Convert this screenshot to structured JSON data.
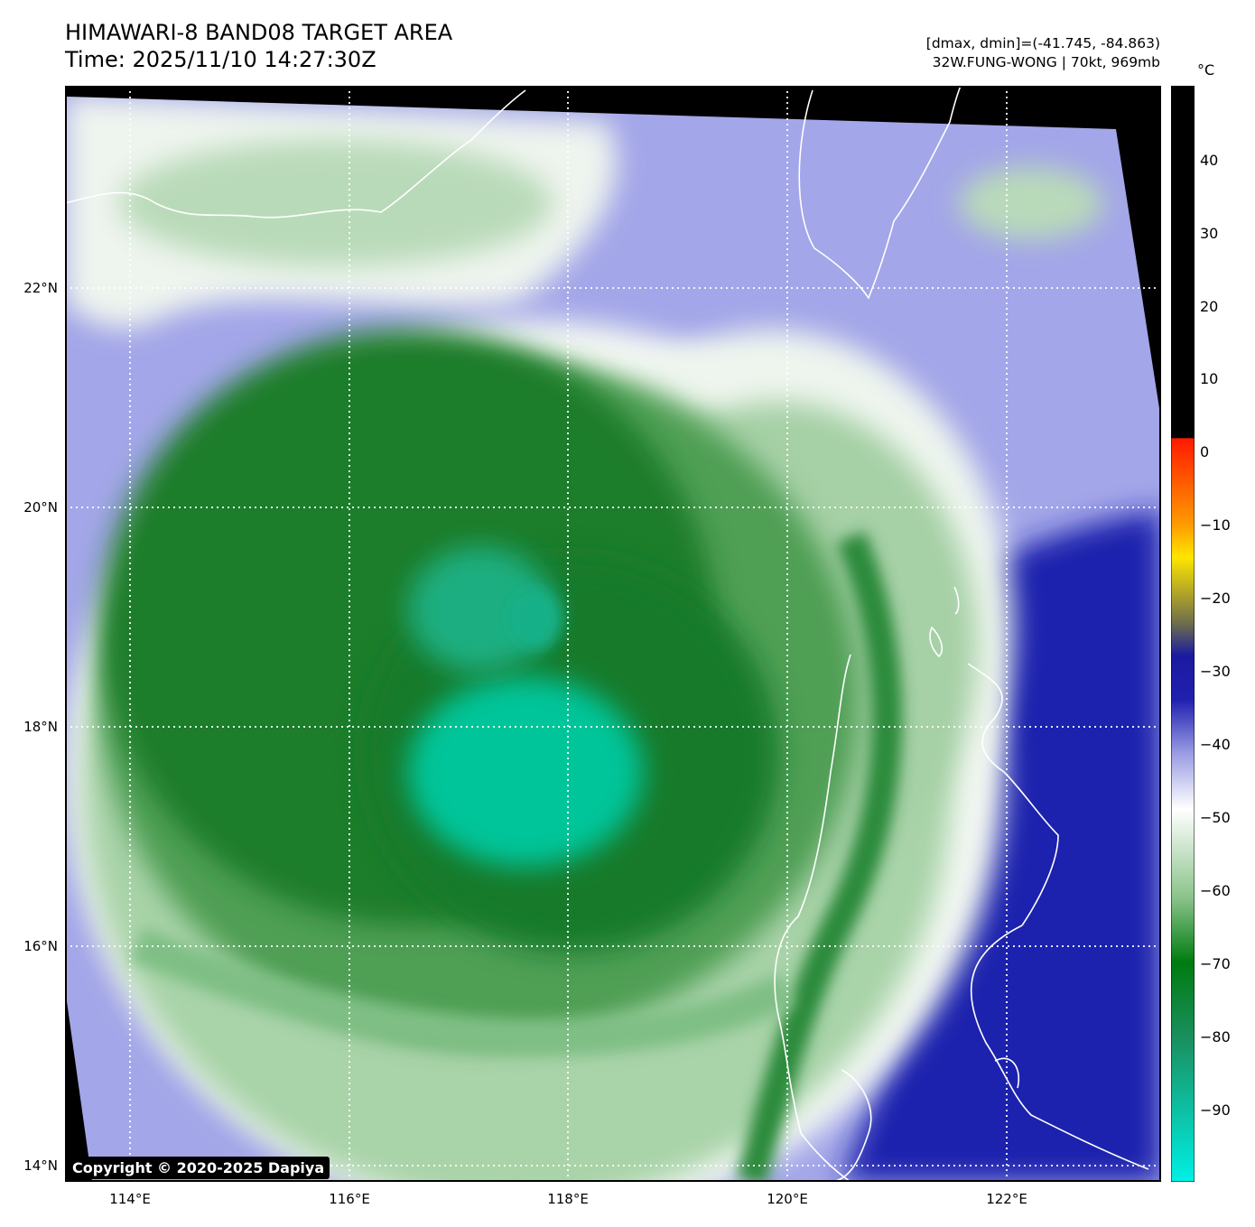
{
  "header": {
    "title_line1": "HIMAWARI-8 BAND08 TARGET AREA",
    "title_line2": "Time: 2025/11/10 14:27:30Z",
    "range_text": "[dmax, dmin]=(-41.745, -84.863)",
    "storm_text": "32W.FUNG-WONG | 70kt, 969mb"
  },
  "map": {
    "lat_labels": [
      "22°N",
      "20°N",
      "18°N",
      "16°N",
      "14°N"
    ],
    "lon_labels": [
      "114°E",
      "116°E",
      "118°E",
      "120°E",
      "122°E"
    ],
    "colors": {
      "cold_core": "#00c896",
      "deep_green": "#1a7f2a",
      "pale_green": "#a8d4a8",
      "white": "#f4f8f4",
      "lavender": "#9ea0e6",
      "deep_blue": "#1b1fa6",
      "coastline": "#ffffff",
      "gridline": "#ffffff"
    }
  },
  "colorbar": {
    "unit": "°C",
    "ticks": [
      "40",
      "30",
      "20",
      "10",
      "0",
      "−10",
      "−20",
      "−30",
      "−40",
      "−50",
      "−60",
      "−70",
      "−80",
      "−90"
    ]
  },
  "footer": {
    "copyright": "Copyright © 2020-2025 Dapiya"
  }
}
